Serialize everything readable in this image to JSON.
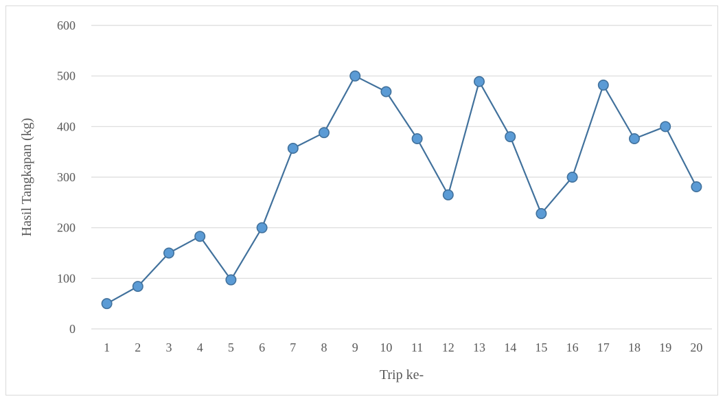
{
  "chart_data": {
    "type": "line",
    "title": "",
    "xlabel": "Trip ke-",
    "ylabel": "Hasil Tangkapan (kg)",
    "ylim": [
      0,
      600
    ],
    "yticks": [
      0,
      100,
      200,
      300,
      400,
      500,
      600
    ],
    "grid": true,
    "legend": "none",
    "x": [
      "1",
      "2",
      "3",
      "4",
      "5",
      "6",
      "7",
      "8",
      "9",
      "10",
      "11",
      "12",
      "13",
      "14",
      "15",
      "16",
      "17",
      "18",
      "19",
      "20"
    ],
    "series": [
      {
        "values": [
          50,
          84,
          150,
          183,
          97,
          200,
          357,
          388,
          500,
          469,
          376,
          265,
          489,
          380,
          228,
          300,
          482,
          376,
          400,
          281
        ],
        "color": "#41719c",
        "marker_fill": "#5b9bd5"
      }
    ]
  }
}
